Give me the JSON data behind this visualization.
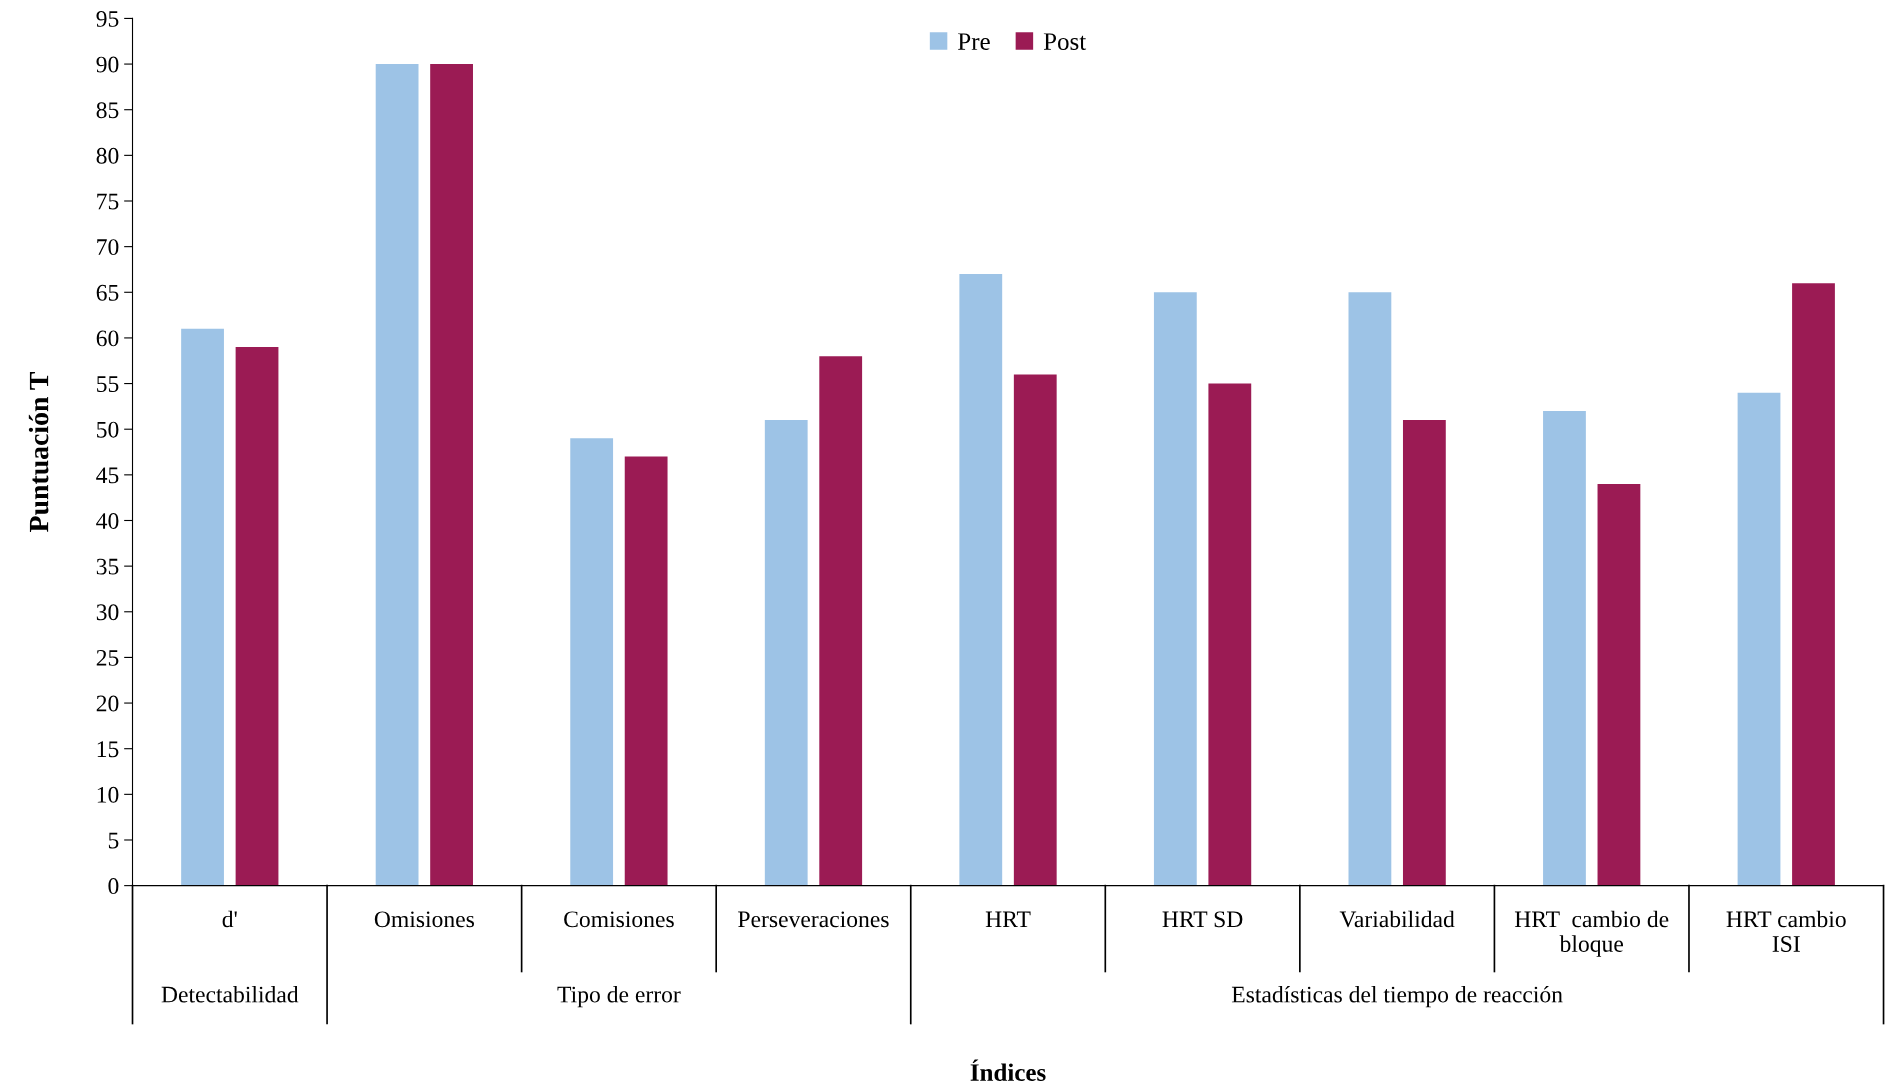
{
  "chart_data": {
    "type": "bar",
    "xlabel": "Índices",
    "ylabel": "Puntuación T",
    "categories": [
      "d'",
      "Omisiones",
      "Comisiones",
      "Perseveraciones",
      "HRT",
      "HRT SD",
      "Variabilidad",
      "HRT  cambio de\nbloque",
      "HRT cambio\nISI"
    ],
    "series": [
      {
        "name": "Pre",
        "color": "#9dc3e6",
        "values": [
          61,
          90,
          49,
          51,
          67,
          65,
          65,
          52,
          54
        ]
      },
      {
        "name": "Post",
        "color": "#9b1b54",
        "values": [
          59,
          90,
          47,
          58,
          56,
          55,
          51,
          44,
          66
        ]
      }
    ],
    "annotations": [
      "Detectabilidad",
      "Tipo de error",
      "Estadísticas del tiempo de reacción"
    ],
    "ylim": [
      0,
      95
    ],
    "yticks": [
      0,
      5,
      10,
      15,
      20,
      25,
      30,
      35,
      40,
      45,
      50,
      55,
      60,
      65,
      70,
      75,
      80,
      85,
      90,
      95
    ],
    "grid": false,
    "legend": "top"
  }
}
